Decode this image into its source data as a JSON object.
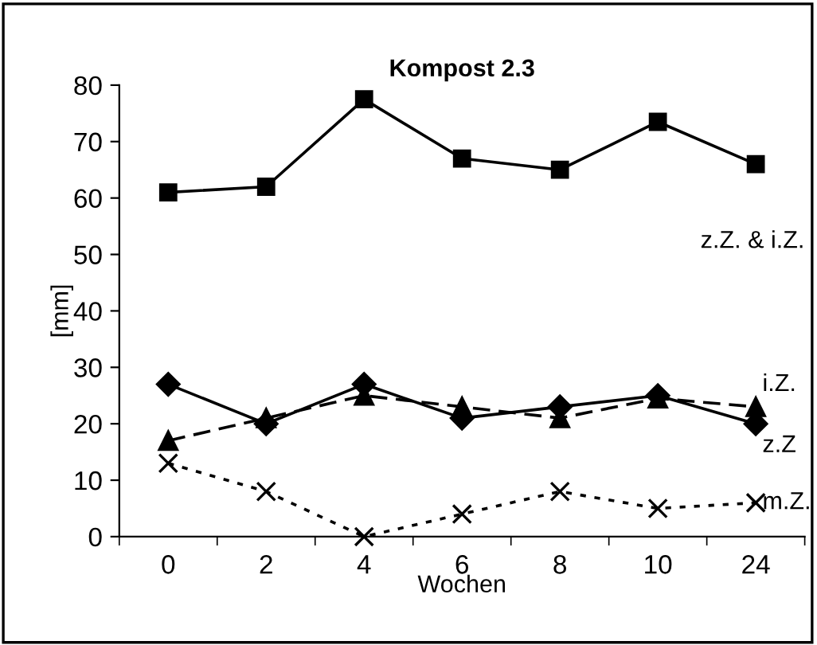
{
  "chart_data": {
    "type": "line",
    "title": "Kompost 2.3",
    "xlabel": "Wochen",
    "ylabel": "[mm]",
    "categories": [
      "0",
      "2",
      "4",
      "6",
      "8",
      "10",
      "24"
    ],
    "ylim": [
      0,
      80
    ],
    "yticks": [
      0,
      10,
      20,
      30,
      40,
      50,
      60,
      70,
      80
    ],
    "grid": false,
    "legend": false,
    "series": [
      {
        "name": "z.Z. & i.Z.",
        "color": "#000000",
        "marker": "square",
        "line_style": "solid",
        "values": [
          61,
          62,
          77.5,
          67,
          65,
          73.5,
          66
        ]
      },
      {
        "name": "z.Z",
        "color": "#000000",
        "marker": "diamond",
        "line_style": "solid",
        "values": [
          27,
          20,
          27,
          21,
          23,
          25,
          20
        ]
      },
      {
        "name": "i.Z.",
        "color": "#000000",
        "marker": "triangle",
        "line_style": "dashed",
        "values": [
          17,
          21,
          25,
          23,
          21,
          24.5,
          23
        ]
      },
      {
        "name": "m.Z.",
        "color": "#000000",
        "marker": "cross",
        "line_style": "dotted",
        "values": [
          13,
          8,
          0,
          4,
          8,
          5,
          6
        ]
      }
    ]
  }
}
